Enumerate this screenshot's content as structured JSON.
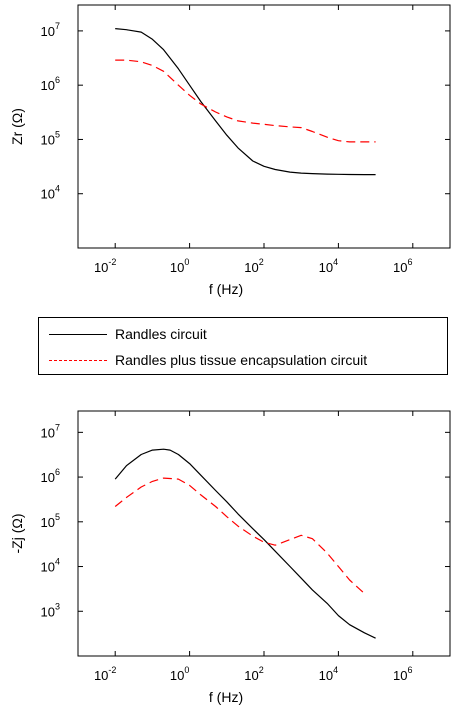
{
  "colors": {
    "series1": "#000000",
    "series2": "#ff0000"
  },
  "legend": {
    "items": [
      {
        "label": "Randles circuit",
        "color": "#000000",
        "style": "solid"
      },
      {
        "label": "Randles plus tissue encapsulation circuit",
        "color": "#ff0000",
        "style": "dashed"
      }
    ]
  },
  "chart_data": [
    {
      "type": "line",
      "xscale": "log",
      "yscale": "log",
      "xlim": [
        0.001,
        10000000
      ],
      "ylim": [
        1000,
        30000000
      ],
      "xlabel": "f (Hz)",
      "ylabel": "Zr (Ω)",
      "xticks": [
        {
          "base": "10",
          "exp": "-2",
          "value": 0.01
        },
        {
          "base": "10",
          "exp": "0",
          "value": 1
        },
        {
          "base": "10",
          "exp": "2",
          "value": 100
        },
        {
          "base": "10",
          "exp": "4",
          "value": 10000
        },
        {
          "base": "10",
          "exp": "6",
          "value": 1000000
        }
      ],
      "yticks": [
        {
          "base": "10",
          "exp": "4",
          "value": 10000
        },
        {
          "base": "10",
          "exp": "5",
          "value": 100000
        },
        {
          "base": "10",
          "exp": "6",
          "value": 1000000
        },
        {
          "base": "10",
          "exp": "7",
          "value": 10000000
        }
      ],
      "grid": false,
      "series": [
        {
          "x": [
            0.01,
            0.02,
            0.05,
            0.1,
            0.2,
            0.5,
            1,
            2,
            5,
            10,
            20,
            50,
            100,
            200,
            500,
            1000,
            2000,
            5000,
            10000,
            20000,
            50000,
            100000
          ],
          "y": [
            11000000,
            10500000,
            9500000,
            7000000,
            4500000,
            2000000,
            1000000,
            500000,
            220000,
            120000,
            70000,
            40000,
            32000,
            28000,
            25000,
            24000,
            23500,
            23000,
            22800,
            22600,
            22500,
            22500
          ]
        },
        {
          "x": [
            0.01,
            0.02,
            0.05,
            0.1,
            0.2,
            0.5,
            1,
            2,
            5,
            10,
            20,
            50,
            100,
            200,
            500,
            1000,
            2000,
            5000,
            10000,
            20000,
            50000,
            100000
          ],
          "y": [
            2900000,
            2900000,
            2700000,
            2300000,
            1800000,
            1000000,
            650000,
            450000,
            320000,
            260000,
            220000,
            200000,
            190000,
            180000,
            170000,
            165000,
            140000,
            110000,
            95000,
            90000,
            90000,
            90000
          ]
        }
      ]
    },
    {
      "type": "line",
      "xscale": "log",
      "yscale": "log",
      "xlim": [
        0.001,
        10000000
      ],
      "ylim": [
        100,
        30000000
      ],
      "xlabel": "f (Hz)",
      "ylabel": "-Zj (Ω)",
      "xticks": [
        {
          "base": "10",
          "exp": "-2",
          "value": 0.01
        },
        {
          "base": "10",
          "exp": "0",
          "value": 1
        },
        {
          "base": "10",
          "exp": "2",
          "value": 100
        },
        {
          "base": "10",
          "exp": "4",
          "value": 10000
        },
        {
          "base": "10",
          "exp": "6",
          "value": 1000000
        }
      ],
      "yticks": [
        {
          "base": "10",
          "exp": "3",
          "value": 1000
        },
        {
          "base": "10",
          "exp": "4",
          "value": 10000
        },
        {
          "base": "10",
          "exp": "5",
          "value": 100000
        },
        {
          "base": "10",
          "exp": "6",
          "value": 1000000
        },
        {
          "base": "10",
          "exp": "7",
          "value": 10000000
        }
      ],
      "grid": false,
      "series": [
        {
          "x": [
            0.01,
            0.02,
            0.05,
            0.1,
            0.2,
            0.3,
            0.5,
            1,
            2,
            5,
            10,
            20,
            50,
            100,
            200,
            500,
            1000,
            2000,
            5000,
            10000,
            20000,
            50000,
            100000
          ],
          "y": [
            900000,
            1800000,
            3200000,
            4000000,
            4200000,
            4000000,
            3200000,
            2000000,
            1100000,
            500000,
            280000,
            150000,
            70000,
            40000,
            22000,
            10000,
            5500,
            3000,
            1500,
            800,
            500,
            330,
            250
          ]
        },
        {
          "x": [
            0.01,
            0.02,
            0.05,
            0.1,
            0.2,
            0.5,
            1,
            2,
            5,
            10,
            20,
            50,
            100,
            200,
            500,
            1000,
            2000,
            5000,
            10000,
            20000,
            50000
          ],
          "y": [
            220000,
            350000,
            600000,
            800000,
            950000,
            900000,
            650000,
            400000,
            220000,
            130000,
            80000,
            48000,
            35000,
            30000,
            40000,
            50000,
            42000,
            20000,
            10000,
            5000,
            2500
          ]
        }
      ]
    }
  ]
}
